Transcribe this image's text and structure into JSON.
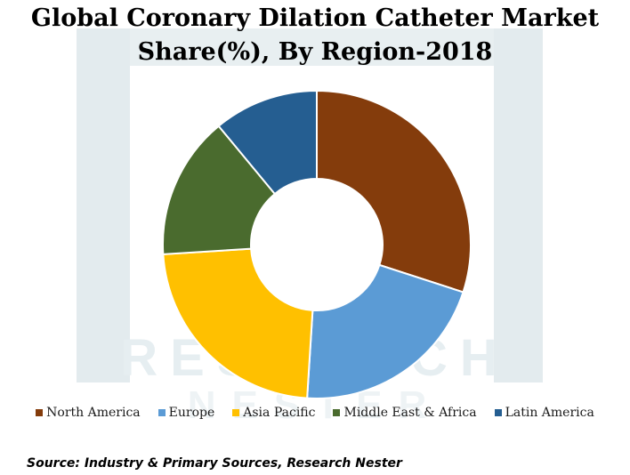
{
  "chart_data": {
    "type": "pie",
    "variant": "donut",
    "title_lines": [
      "Global Coronary Dilation Catheter Market",
      "Share(%), By Region-2018"
    ],
    "series": [
      {
        "name": "North America",
        "value": 30,
        "color": "#843c0c"
      },
      {
        "name": "Europe",
        "value": 21,
        "color": "#5b9bd5"
      },
      {
        "name": "Asia Pacific",
        "value": 23,
        "color": "#ffc000"
      },
      {
        "name": "Middle East & Africa",
        "value": 15,
        "color": "#4a6b2e"
      },
      {
        "name": "Latin America",
        "value": 11,
        "color": "#255e91"
      }
    ],
    "legend_position": "bottom"
  },
  "watermark": {
    "line1": "RESEARCH",
    "line2": "NESTER"
  },
  "source": "Source: Industry & Primary Sources, Research Nester"
}
